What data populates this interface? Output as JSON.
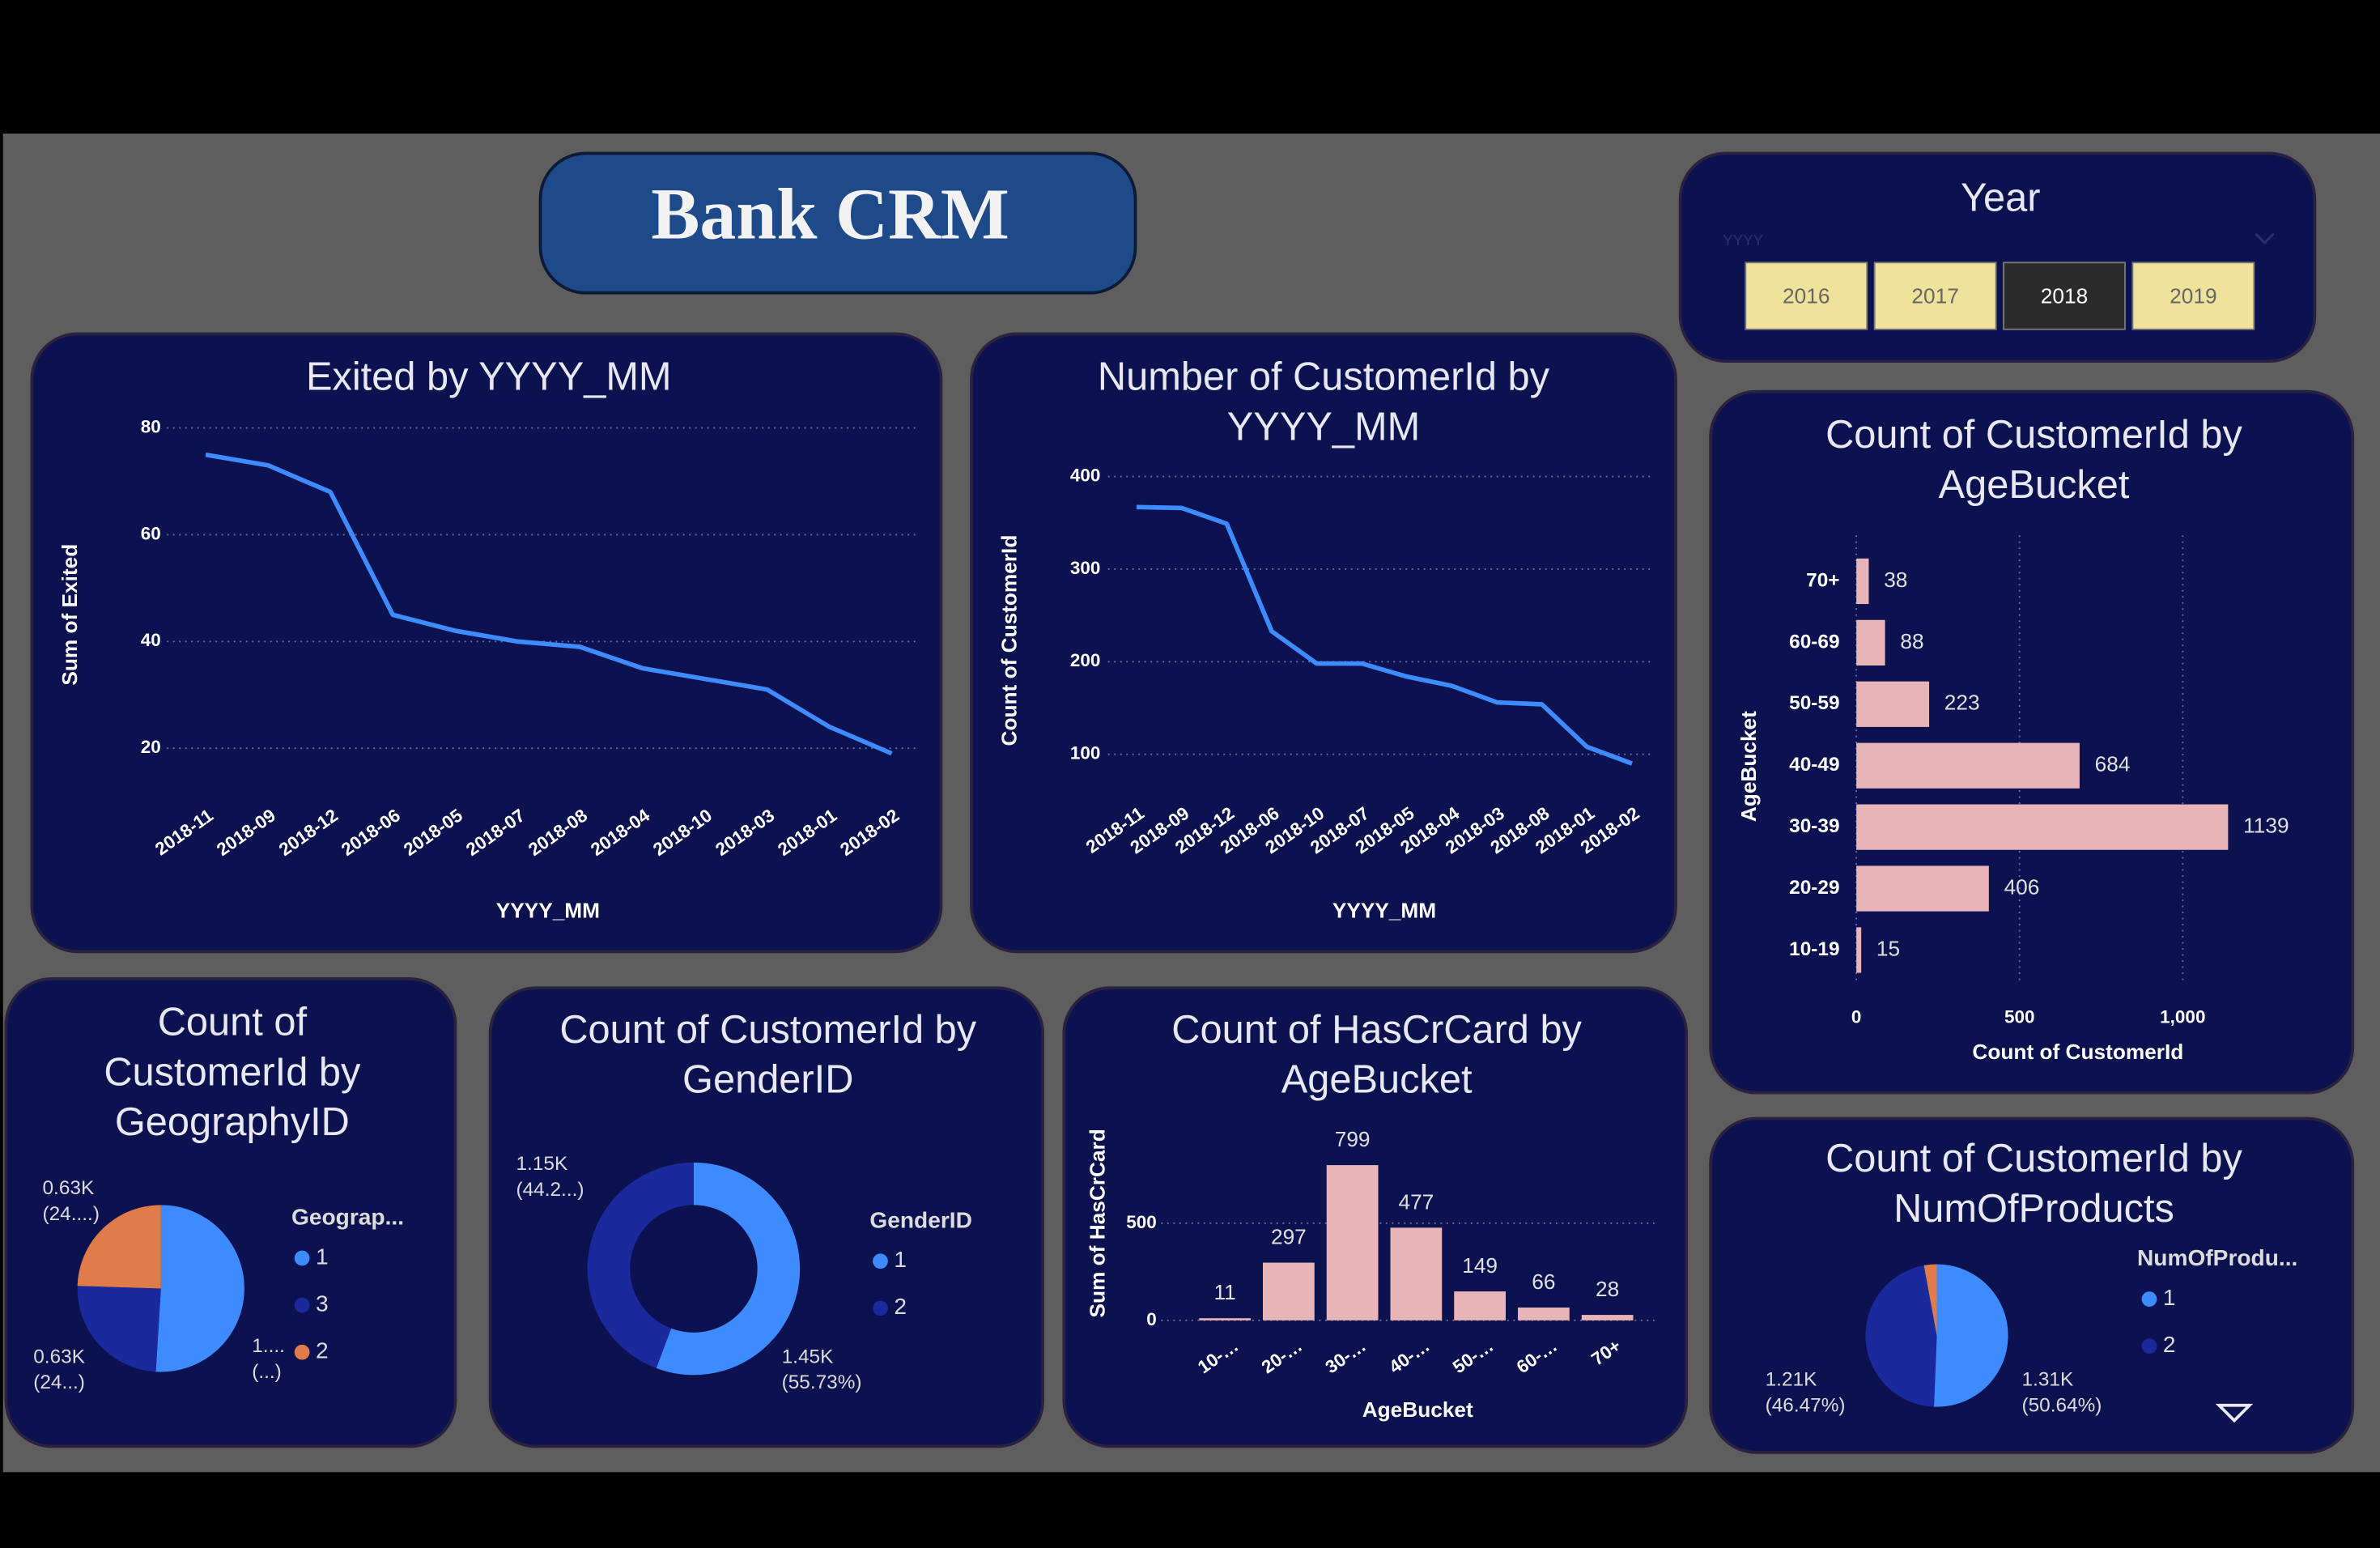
{
  "header": {
    "title": "Bank CRM"
  },
  "slicer": {
    "title": "Year",
    "placeholder": "YYYY",
    "options": [
      "2016",
      "2017",
      "2018",
      "2019"
    ],
    "selected": "2018"
  },
  "chart_data": [
    {
      "type": "line",
      "title": "Exited by YYYY_MM",
      "x_label": "YYYY_MM",
      "y_label": "Sum of Exited",
      "categories": [
        "2018-11",
        "2018-09",
        "2018-12",
        "2018-06",
        "2018-05",
        "2018-07",
        "2018-08",
        "2018-04",
        "2018-10",
        "2018-03",
        "2018-01",
        "2018-02"
      ],
      "values": [
        75,
        73,
        68,
        45,
        42,
        40,
        39,
        35,
        33,
        31,
        24,
        19
      ],
      "color": "#3d8bff",
      "ylim": [
        15,
        80
      ],
      "yticks": [
        20,
        40,
        60,
        80
      ],
      "grid": true
    },
    {
      "type": "line",
      "title": "Number of CustomerId by YYYY_MM",
      "x_label": "YYYY_MM",
      "y_label": "Count of CustomerId",
      "categories": [
        "2018-11",
        "2018-09",
        "2018-12",
        "2018-06",
        "2018-10",
        "2018-07",
        "2018-05",
        "2018-04",
        "2018-03",
        "2018-08",
        "2018-01",
        "2018-02"
      ],
      "values": [
        367,
        366,
        349,
        233,
        198,
        198,
        184,
        174,
        156,
        154,
        108,
        90
      ],
      "color": "#3d8bff",
      "ylim": [
        80,
        400
      ],
      "yticks": [
        100,
        200,
        300,
        400
      ],
      "grid": true
    },
    {
      "type": "hbar",
      "title": "Count of CustomerId by AgeBucket",
      "x_label": "Count of CustomerId",
      "y_label": "AgeBucket",
      "categories": [
        "70+",
        "60-69",
        "50-59",
        "40-49",
        "30-39",
        "20-29",
        "10-19"
      ],
      "values": [
        38,
        88,
        223,
        684,
        1139,
        406,
        15
      ],
      "color": "#e8b4b8",
      "xlim": [
        0,
        1150
      ],
      "xticks": [
        0,
        500,
        {
          "value": 1000,
          "label": "1,000"
        }
      ],
      "grid": true
    },
    {
      "type": "pie",
      "title": "Count of CustomerId by GeographyID",
      "legend_title": "Geograp...",
      "categories": [
        "1",
        "3",
        "2"
      ],
      "values": [
        1310,
        630,
        630
      ],
      "value_labels": [
        "1....\n(...)",
        "0.63K\n(24...)",
        "0.63K\n(24....)"
      ],
      "colors": [
        "#3d8bff",
        "#1a2a9c",
        "#e07b4a"
      ]
    },
    {
      "type": "donut",
      "title": "Count of CustomerId by GenderID",
      "legend_title": "GenderID",
      "categories": [
        "1",
        "2"
      ],
      "values": [
        1450,
        1152
      ],
      "value_labels": [
        "1.45K\n(55.73%)",
        "1.15K\n(44.2...)"
      ],
      "colors": [
        "#3d8bff",
        "#1a2a9c"
      ]
    },
    {
      "type": "column",
      "title": "Count of HasCrCard by AgeBucket",
      "x_label": "AgeBucket",
      "y_label": "Sum of HasCrCard",
      "categories": [
        "10-…",
        "20-…",
        "30-…",
        "40-…",
        "50-…",
        "60-…",
        "70+"
      ],
      "values": [
        11,
        297,
        799,
        477,
        149,
        66,
        28
      ],
      "color": "#e8b4b8",
      "ylim": [
        0,
        860
      ],
      "yticks": [
        0,
        500
      ],
      "grid": true
    },
    {
      "type": "pie",
      "title": "Count of CustomerId by NumOfProducts",
      "legend_title": "NumOfProdu...",
      "categories": [
        "1",
        "2",
        null
      ],
      "values": [
        1314,
        1206,
        75
      ],
      "value_labels": [
        "1.31K\n(50.64%)",
        "1.21K\n(46.47%)",
        null
      ],
      "colors": [
        "#3d8bff",
        "#1a2a9c",
        "#e07b4a"
      ]
    }
  ]
}
